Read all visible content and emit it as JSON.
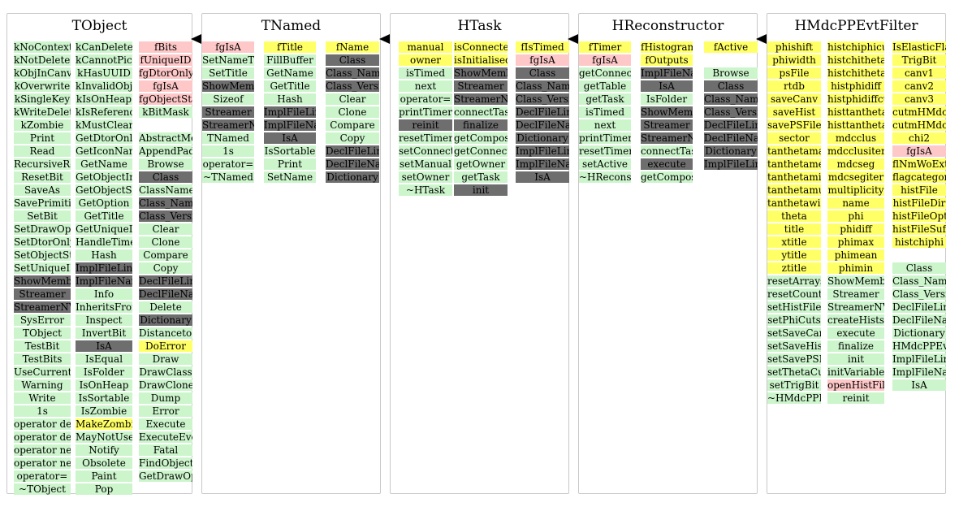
{
  "classes": [
    {
      "title": "TObject",
      "columns": [
        [
          [
            "kNoContextMenu",
            "g"
          ],
          [
            "kNotDeleted",
            "g"
          ],
          [
            "kObjInCanvas",
            "g"
          ],
          [
            "kOverwrite",
            "g"
          ],
          [
            "kSingleKey",
            "g"
          ],
          [
            "kWriteDelete",
            "g"
          ],
          [
            "kZombie",
            "g"
          ],
          [
            "Print",
            "g"
          ],
          [
            "Read",
            "g"
          ],
          [
            "RecursiveRemove",
            "g"
          ],
          [
            "ResetBit",
            "g"
          ],
          [
            "SaveAs",
            "g"
          ],
          [
            "SavePrimitive",
            "g"
          ],
          [
            "SetBit",
            "g"
          ],
          [
            "SetDrawOption",
            "g"
          ],
          [
            "SetDtorOnly",
            "g"
          ],
          [
            "SetObjectStat",
            "g"
          ],
          [
            "SetUniqueID",
            "g"
          ],
          [
            "ShowMembers",
            "d"
          ],
          [
            "Streamer",
            "d"
          ],
          [
            "StreamerNVirtual",
            "d"
          ],
          [
            "SysError",
            "g"
          ],
          [
            "TObject",
            "g"
          ],
          [
            "TestBit",
            "g"
          ],
          [
            "TestBits",
            "g"
          ],
          [
            "UseCurrentStyle",
            "g"
          ],
          [
            "Warning",
            "g"
          ],
          [
            "Write",
            "g"
          ],
          [
            "1s",
            "g"
          ],
          [
            "operator delete",
            "g"
          ],
          [
            "operator delete[]",
            "g"
          ],
          [
            "operator new",
            "g"
          ],
          [
            "operator new[]",
            "g"
          ],
          [
            "operator=",
            "g"
          ],
          [
            "~TObject",
            "g"
          ]
        ],
        [
          [
            "kCanDelete",
            "g"
          ],
          [
            "kCannotPick",
            "g"
          ],
          [
            "kHasUUID",
            "g"
          ],
          [
            "kInvalidObject",
            "g"
          ],
          [
            "kIsOnHeap",
            "g"
          ],
          [
            "kIsReferenced",
            "g"
          ],
          [
            "kMustCleanup",
            "g"
          ],
          [
            "GetDtorOnly",
            "g"
          ],
          [
            "GetIconName",
            "g"
          ],
          [
            "GetName",
            "g"
          ],
          [
            "GetObjectInfo",
            "g"
          ],
          [
            "GetObjectStat",
            "g"
          ],
          [
            "GetOption",
            "g"
          ],
          [
            "GetTitle",
            "g"
          ],
          [
            "GetUniqueID",
            "g"
          ],
          [
            "HandleTimer",
            "g"
          ],
          [
            "Hash",
            "g"
          ],
          [
            "ImplFileLine",
            "d"
          ],
          [
            "ImplFileName",
            "d"
          ],
          [
            "Info",
            "g"
          ],
          [
            "InheritsFrom",
            "g"
          ],
          [
            "Inspect",
            "g"
          ],
          [
            "InvertBit",
            "g"
          ],
          [
            "IsA",
            "d"
          ],
          [
            "IsEqual",
            "g"
          ],
          [
            "IsFolder",
            "g"
          ],
          [
            "IsOnHeap",
            "g"
          ],
          [
            "IsSortable",
            "g"
          ],
          [
            "IsZombie",
            "g"
          ],
          [
            "MakeZombie",
            "y"
          ],
          [
            "MayNotUse",
            "g"
          ],
          [
            "Notify",
            "g"
          ],
          [
            "Obsolete",
            "g"
          ],
          [
            "Paint",
            "g"
          ],
          [
            "Pop",
            "g"
          ]
        ],
        [
          [
            "fBits",
            "p"
          ],
          [
            "fUniqueID",
            "p"
          ],
          [
            "fgDtorOnly",
            "p"
          ],
          [
            "fgIsA",
            "p"
          ],
          [
            "fgObjectStat",
            "p"
          ],
          [
            "kBitMask",
            "g"
          ],
          [
            "",
            ""
          ],
          [
            "AbstractMethod",
            "g"
          ],
          [
            "AppendPad",
            "g"
          ],
          [
            "Browse",
            "g"
          ],
          [
            "Class",
            "d"
          ],
          [
            "ClassName",
            "g"
          ],
          [
            "Class_Name",
            "d"
          ],
          [
            "Class_Version",
            "d"
          ],
          [
            "Clear",
            "g"
          ],
          [
            "Clone",
            "g"
          ],
          [
            "Compare",
            "g"
          ],
          [
            "Copy",
            "g"
          ],
          [
            "DeclFileLine",
            "d"
          ],
          [
            "DeclFileName",
            "d"
          ],
          [
            "Delete",
            "g"
          ],
          [
            "Dictionary",
            "d"
          ],
          [
            "DistancetoPrimitive",
            "g"
          ],
          [
            "DoError",
            "y"
          ],
          [
            "Draw",
            "g"
          ],
          [
            "DrawClass",
            "g"
          ],
          [
            "DrawClone",
            "g"
          ],
          [
            "Dump",
            "g"
          ],
          [
            "Error",
            "g"
          ],
          [
            "Execute",
            "g"
          ],
          [
            "ExecuteEvent",
            "g"
          ],
          [
            "Fatal",
            "g"
          ],
          [
            "FindObject",
            "g"
          ],
          [
            "GetDrawOption",
            "g"
          ]
        ]
      ]
    },
    {
      "title": "TNamed",
      "columns": [
        [
          [
            "fgIsA",
            "p"
          ],
          [
            "SetNameTitle",
            "g"
          ],
          [
            "SetTitle",
            "g"
          ],
          [
            "ShowMembers",
            "d"
          ],
          [
            "Sizeof",
            "g"
          ],
          [
            "Streamer",
            "d"
          ],
          [
            "StreamerNVirtual",
            "d"
          ],
          [
            "TNamed",
            "g"
          ],
          [
            "1s",
            "g"
          ],
          [
            "operator=",
            "g"
          ],
          [
            "~TNamed",
            "g"
          ]
        ],
        [
          [
            "fTitle",
            "y"
          ],
          [
            "FillBuffer",
            "g"
          ],
          [
            "GetName",
            "g"
          ],
          [
            "GetTitle",
            "g"
          ],
          [
            "Hash",
            "g"
          ],
          [
            "ImplFileLine",
            "d"
          ],
          [
            "ImplFileName",
            "d"
          ],
          [
            "IsA",
            "d"
          ],
          [
            "IsSortable",
            "g"
          ],
          [
            "Print",
            "g"
          ],
          [
            "SetName",
            "g"
          ]
        ],
        [
          [
            "fName",
            "y"
          ],
          [
            "Class",
            "d"
          ],
          [
            "Class_Name",
            "d"
          ],
          [
            "Class_Version",
            "d"
          ],
          [
            "Clear",
            "g"
          ],
          [
            "Clone",
            "g"
          ],
          [
            "Compare",
            "g"
          ],
          [
            "Copy",
            "g"
          ],
          [
            "DeclFileLine",
            "d"
          ],
          [
            "DeclFileName",
            "d"
          ],
          [
            "Dictionary",
            "d"
          ]
        ]
      ]
    },
    {
      "title": "HTask",
      "columns": [
        [
          [
            "manual",
            "y"
          ],
          [
            "owner",
            "y"
          ],
          [
            "isTimed",
            "g"
          ],
          [
            "next",
            "g"
          ],
          [
            "operator=",
            "g"
          ],
          [
            "printTimer",
            "g"
          ],
          [
            "reinit",
            "d"
          ],
          [
            "resetTimer",
            "g"
          ],
          [
            "setConnections",
            "g"
          ],
          [
            "setManual",
            "g"
          ],
          [
            "setOwner",
            "g"
          ],
          [
            "~HTask",
            "g"
          ]
        ],
        [
          [
            "isConnected",
            "y"
          ],
          [
            "isInitialised",
            "y"
          ],
          [
            "ShowMembers",
            "d"
          ],
          [
            "Streamer",
            "d"
          ],
          [
            "StreamerNVirtual",
            "d"
          ],
          [
            "connectTask",
            "g"
          ],
          [
            "finalize",
            "d"
          ],
          [
            "getComposite",
            "g"
          ],
          [
            "getConnections",
            "g"
          ],
          [
            "getOwner",
            "g"
          ],
          [
            "getTask",
            "g"
          ],
          [
            "init",
            "d"
          ]
        ],
        [
          [
            "fIsTimed",
            "y"
          ],
          [
            "fgIsA",
            "p"
          ],
          [
            "Class",
            "d"
          ],
          [
            "Class_Name",
            "d"
          ],
          [
            "Class_Version",
            "d"
          ],
          [
            "DeclFileLine",
            "d"
          ],
          [
            "DeclFileName",
            "d"
          ],
          [
            "Dictionary",
            "d"
          ],
          [
            "ImplFileLine",
            "d"
          ],
          [
            "ImplFileName",
            "d"
          ],
          [
            "IsA",
            "d"
          ]
        ]
      ]
    },
    {
      "title": "HReconstructor",
      "columns": [
        [
          [
            "fTimer",
            "y"
          ],
          [
            "fgIsA",
            "p"
          ],
          [
            "getConnections",
            "g"
          ],
          [
            "getTable",
            "g"
          ],
          [
            "getTask",
            "g"
          ],
          [
            "isTimed",
            "g"
          ],
          [
            "next",
            "g"
          ],
          [
            "printTimer",
            "g"
          ],
          [
            "resetTimer",
            "g"
          ],
          [
            "setActive",
            "g"
          ],
          [
            "~HReconstructor",
            "g"
          ]
        ],
        [
          [
            "fHistograms",
            "y"
          ],
          [
            "fOutputs",
            "y"
          ],
          [
            "ImplFileName",
            "d"
          ],
          [
            "IsA",
            "d"
          ],
          [
            "IsFolder",
            "g"
          ],
          [
            "ShowMembers",
            "d"
          ],
          [
            "Streamer",
            "d"
          ],
          [
            "StreamerNVirtual",
            "d"
          ],
          [
            "connectTask",
            "g"
          ],
          [
            "execute",
            "d"
          ],
          [
            "getComposite",
            "g"
          ]
        ],
        [
          [
            "fActive",
            "y"
          ],
          [
            "",
            ""
          ],
          [
            "Browse",
            "g"
          ],
          [
            "Class",
            "d"
          ],
          [
            "Class_Name",
            "d"
          ],
          [
            "Class_Version",
            "d"
          ],
          [
            "DeclFileLine",
            "d"
          ],
          [
            "DeclFileName",
            "d"
          ],
          [
            "Dictionary",
            "d"
          ],
          [
            "ImplFileLine",
            "d"
          ]
        ]
      ]
    },
    {
      "title": "HMdcPPEvtFilter",
      "columns": [
        [
          [
            "phishift",
            "y"
          ],
          [
            "phiwidth",
            "y"
          ],
          [
            "psFile",
            "y"
          ],
          [
            "rtdb",
            "y"
          ],
          [
            "saveCanv",
            "y"
          ],
          [
            "saveHist",
            "y"
          ],
          [
            "savePSFile",
            "y"
          ],
          [
            "sector",
            "y"
          ],
          [
            "tanthetamax",
            "y"
          ],
          [
            "tanthetamean",
            "y"
          ],
          [
            "tanthetamin",
            "y"
          ],
          [
            "tanthetamult",
            "y"
          ],
          [
            "tanthetawidth",
            "y"
          ],
          [
            "theta",
            "y"
          ],
          [
            "title",
            "y"
          ],
          [
            "xtitle",
            "y"
          ],
          [
            "ytitle",
            "y"
          ],
          [
            "ztitle",
            "y"
          ],
          [
            "resetArrays",
            "g"
          ],
          [
            "resetCounters",
            "g"
          ],
          [
            "setHistFile",
            "g"
          ],
          [
            "setPhiCuts",
            "g"
          ],
          [
            "setSaveCanv",
            "g"
          ],
          [
            "setSaveHists",
            "g"
          ],
          [
            "setSavePSFile",
            "g"
          ],
          [
            "setThetaCuts",
            "g"
          ],
          [
            "setTrigBit",
            "g"
          ],
          [
            "~HMdcPPEvtFilter",
            "g"
          ]
        ],
        [
          [
            "histchiphicut",
            "y"
          ],
          [
            "histchitheta",
            "y"
          ],
          [
            "histchithetacut",
            "y"
          ],
          [
            "histphidiff",
            "y"
          ],
          [
            "histphidiffcut",
            "y"
          ],
          [
            "histtanthetamult",
            "y"
          ],
          [
            "histtanthetamultcut",
            "y"
          ],
          [
            "mdcclus",
            "y"
          ],
          [
            "mdcclusiter",
            "y"
          ],
          [
            "mdcseg",
            "y"
          ],
          [
            "mdcsegiter",
            "y"
          ],
          [
            "multiplicity",
            "y"
          ],
          [
            "name",
            "y"
          ],
          [
            "phi",
            "y"
          ],
          [
            "phidiff",
            "y"
          ],
          [
            "phimax",
            "y"
          ],
          [
            "phimean",
            "y"
          ],
          [
            "phimin",
            "y"
          ],
          [
            "ShowMembers",
            "g"
          ],
          [
            "Streamer",
            "g"
          ],
          [
            "StreamerNVirtual",
            "g"
          ],
          [
            "createHists",
            "g"
          ],
          [
            "execute",
            "g"
          ],
          [
            "finalize",
            "g"
          ],
          [
            "init",
            "g"
          ],
          [
            "initVariables",
            "g"
          ],
          [
            "openHistFile",
            "p"
          ],
          [
            "reinit",
            "g"
          ]
        ],
        [
          [
            "IsElasticFlag",
            "y"
          ],
          [
            "TrigBit",
            "y"
          ],
          [
            "canv1",
            "y"
          ],
          [
            "canv2",
            "y"
          ],
          [
            "canv3",
            "y"
          ],
          [
            "cutmHMdcClus",
            "y"
          ],
          [
            "cutmHMdcSeg",
            "y"
          ],
          [
            "chi2",
            "y"
          ],
          [
            "fgIsA",
            "p"
          ],
          [
            "flNmWoExt",
            "y"
          ],
          [
            "flagcategory",
            "y"
          ],
          [
            "histFile",
            "y"
          ],
          [
            "histFileDir",
            "y"
          ],
          [
            "histFileOption",
            "y"
          ],
          [
            "histFileSuffix",
            "y"
          ],
          [
            "histchiphi",
            "y"
          ],
          [
            "",
            ""
          ],
          [
            "Class",
            "g"
          ],
          [
            "Class_Name",
            "g"
          ],
          [
            "Class_Version",
            "g"
          ],
          [
            "DeclFileLine",
            "g"
          ],
          [
            "DeclFileName",
            "g"
          ],
          [
            "Dictionary",
            "g"
          ],
          [
            "HMdcPPEvtFilter",
            "g"
          ],
          [
            "ImplFileLine",
            "g"
          ],
          [
            "ImplFileName",
            "g"
          ],
          [
            "IsA",
            "g"
          ]
        ]
      ]
    }
  ],
  "colors": {
    "g": "#ccf5cc",
    "y": "#ffff66",
    "p": "#ffc8c8",
    "d": "#6e6e6e"
  }
}
